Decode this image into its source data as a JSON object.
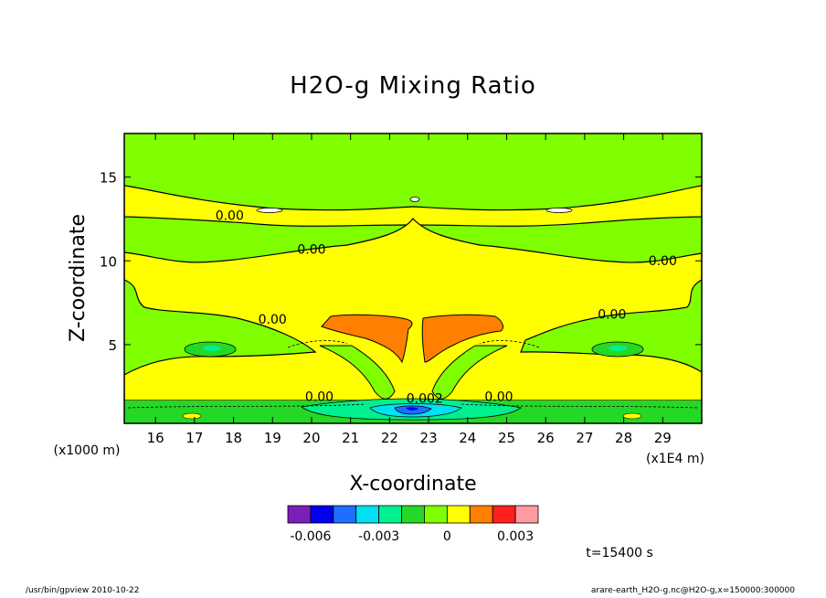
{
  "chart_data": {
    "type": "heatmap",
    "title": "H2O-g Mixing Ratio",
    "xlabel": "X-coordinate",
    "ylabel": "Z-coordinate",
    "x_unit": "(x1E4 m)",
    "y_unit": "(x1000 m)",
    "xlim": [
      15.2,
      30.0
    ],
    "ylim": [
      0.3,
      17.6
    ],
    "x_ticks": [
      16,
      17,
      18,
      19,
      20,
      21,
      22,
      23,
      24,
      25,
      26,
      27,
      28,
      29
    ],
    "y_ticks": [
      5,
      10,
      15
    ],
    "contour_labels": [
      {
        "text": "0.00",
        "x": 17.9,
        "z": 12.6
      },
      {
        "text": "0.00",
        "x": 20.0,
        "z": 10.6
      },
      {
        "text": "0.00",
        "x": 29.0,
        "z": 9.9
      },
      {
        "text": "0.00",
        "x": 19.0,
        "z": 6.4
      },
      {
        "text": "0.00",
        "x": 27.7,
        "z": 6.7
      },
      {
        "text": "0.00",
        "x": 20.2,
        "z": 1.8
      },
      {
        "text": "0.00",
        "x": 24.8,
        "z": 1.8
      },
      {
        "text": "0.002",
        "x": 22.9,
        "z": 1.7
      }
    ],
    "colorbar": {
      "colors": [
        "#7a1fb8",
        "#0000ee",
        "#1e6fff",
        "#00e0f0",
        "#00f090",
        "#25d825",
        "#7fff00",
        "#ffff00",
        "#ff7f00",
        "#ff2020",
        "#ff9aa0"
      ],
      "tick_labels": [
        "-0.006",
        "-0.003",
        "0",
        "0.003"
      ],
      "tick_values": [
        -0.006,
        -0.003,
        0,
        0.003
      ],
      "vmin": -0.007,
      "vmax": 0.004
    },
    "annotation": "t=15400 s"
  },
  "footer": {
    "left": "/usr/bin/gpview   2010-10-22",
    "right": "arare-earth_H2O-g.nc@H2O-g,x=150000:300000"
  }
}
